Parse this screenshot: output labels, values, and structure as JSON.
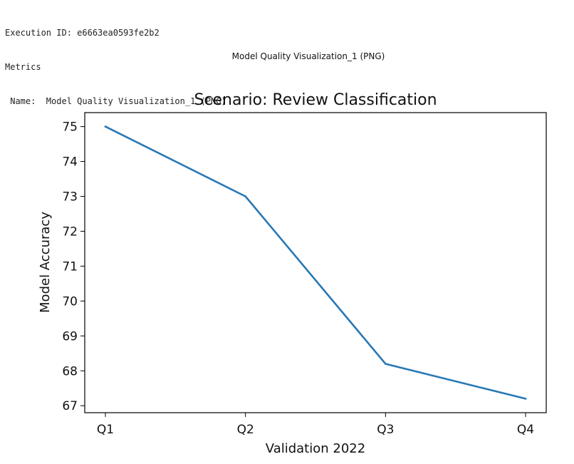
{
  "execution": {
    "id_label": "Execution ID: e6663ea0593fe2b2",
    "section": "Metrics",
    "name_line": " Name:  Model Quality Visualization_1 (PNG)"
  },
  "image_caption": "Model Quality Visualization_1 (PNG)",
  "chart_data": {
    "type": "line",
    "title": "Scenario: Review Classification",
    "xlabel": "Validation 2022",
    "ylabel": "Model Accuracy",
    "categories": [
      "Q1",
      "Q2",
      "Q3",
      "Q4"
    ],
    "series": [
      {
        "values": [
          75.0,
          73.0,
          68.2,
          67.2
        ],
        "color": "#2878b5"
      }
    ],
    "ylim": [
      66.8,
      75.4
    ],
    "yticks": [
      67,
      68,
      69,
      70,
      71,
      72,
      73,
      74,
      75
    ],
    "grid": false
  }
}
